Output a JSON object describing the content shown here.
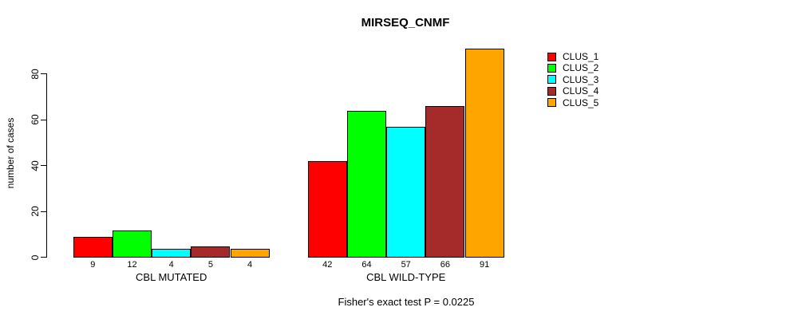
{
  "chart_data": {
    "type": "bar",
    "title": "MIRSEQ_CNMF",
    "ylabel": "number of cases",
    "ylim": [
      0,
      91
    ],
    "yticks": [
      0,
      20,
      40,
      60,
      80
    ],
    "grid": false,
    "legend_position": "topright",
    "bar_value_labels_shown": true,
    "series": [
      {
        "name": "CLUS_1",
        "color": "#FF0000"
      },
      {
        "name": "CLUS_2",
        "color": "#00FF00"
      },
      {
        "name": "CLUS_3",
        "color": "#00FFFF"
      },
      {
        "name": "CLUS_4",
        "color": "#A52A2A"
      },
      {
        "name": "CLUS_5",
        "color": "#FFA500"
      }
    ],
    "groups": [
      {
        "label": "CBL MUTATED",
        "values": [
          9,
          12,
          4,
          5,
          4
        ]
      },
      {
        "label": "CBL WILD-TYPE",
        "values": [
          42,
          64,
          57,
          66,
          91
        ]
      }
    ],
    "footnote": "Fisher's exact test P = 0.0225"
  }
}
